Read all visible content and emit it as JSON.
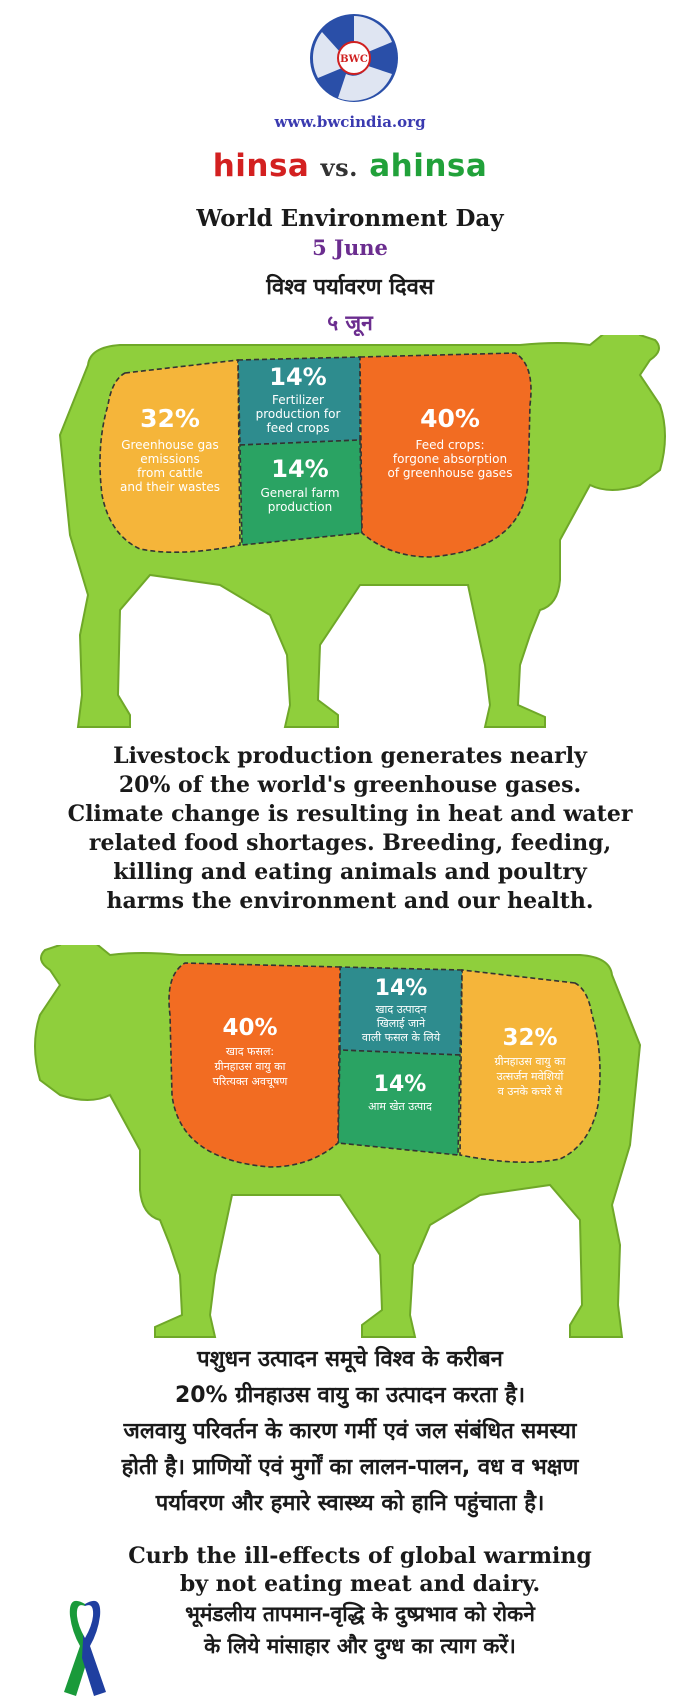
{
  "logo": {
    "text": "BWC",
    "icon": "bwc-logo-icon"
  },
  "site_url": "www.bwcindia.org",
  "headline": {
    "hinsa": "hinsa",
    "vs": "vs.",
    "ahinsa": "ahinsa"
  },
  "event_en": "World Environment Day",
  "date_en": "5 June",
  "event_hi": "विश्व पर्यावरण दिवस",
  "date_hi": "५ जून",
  "cow_en": {
    "emissions": {
      "pct": "32%",
      "lines": [
        "Greenhouse gas",
        "emissions",
        "from cattle",
        "and their wastes"
      ],
      "color": "#f5b53a"
    },
    "fertilizer": {
      "pct": "14%",
      "lines": [
        "Fertilizer",
        "production for",
        "feed crops"
      ],
      "color": "#2e8c8e"
    },
    "farm": {
      "pct": "14%",
      "lines": [
        "General farm",
        "production"
      ],
      "color": "#2aa363"
    },
    "feed": {
      "pct": "40%",
      "lines": [
        "Feed crops:",
        "forgone absorption",
        "of greenhouse gases"
      ],
      "color": "#f26c22"
    },
    "body_color": "#8fcf3c"
  },
  "para_en": [
    "Livestock production generates nearly",
    "20% of the world's greenhouse gases.",
    "Climate change is resulting in heat and water",
    "related food shortages. Breeding, feeding,",
    "killing and eating animals and poultry",
    "harms the environment and our health."
  ],
  "cow_hi": {
    "feed": {
      "pct": "40%",
      "lines": [
        "खाद फसल:",
        "ग्रीनहाउस वायु का",
        "परित्यक्त अवचूषण"
      ]
    },
    "fertilizer": {
      "pct": "14%",
      "lines": [
        "खाद उत्पादन",
        "खिलाई जाने",
        "वाली फसल के लिये"
      ]
    },
    "farm": {
      "pct": "14%",
      "lines": [
        "आम खेत उत्पाद"
      ]
    },
    "emissions": {
      "pct": "32%",
      "lines": [
        "ग्रीनहाउस वायु का",
        "उत्सर्जन मवेशियों",
        "व उनके कचरे से"
      ]
    }
  },
  "para_hi": [
    "पशुधन उत्पादन समूचे विश्व के करीबन",
    "20% ग्रीनहाउस वायु का उत्पादन करता है।",
    "जलवायु परिवर्तन के कारण गर्मी एवं जल संबंधित समस्या",
    "होती है। प्राणियों एवं मुर्गों का लालन-पालन, वध व भक्षण",
    "पर्यावरण और हमारे स्वास्थ्य को हानि पहुंचाता है।"
  ],
  "closing_en": [
    "Curb the ill-effects of global warming",
    "by not eating meat and dairy."
  ],
  "closing_hi": [
    "भूमंडलीय तापमान-वृद्धि के दुष्प्रभाव को रोकने",
    "के लिये मांसाहार और दुग्ध का त्याग करें।"
  ],
  "ribbon": {
    "icon": "awareness-ribbon-icon",
    "colors": [
      "#1f3fa0",
      "#1a9a3a"
    ]
  }
}
